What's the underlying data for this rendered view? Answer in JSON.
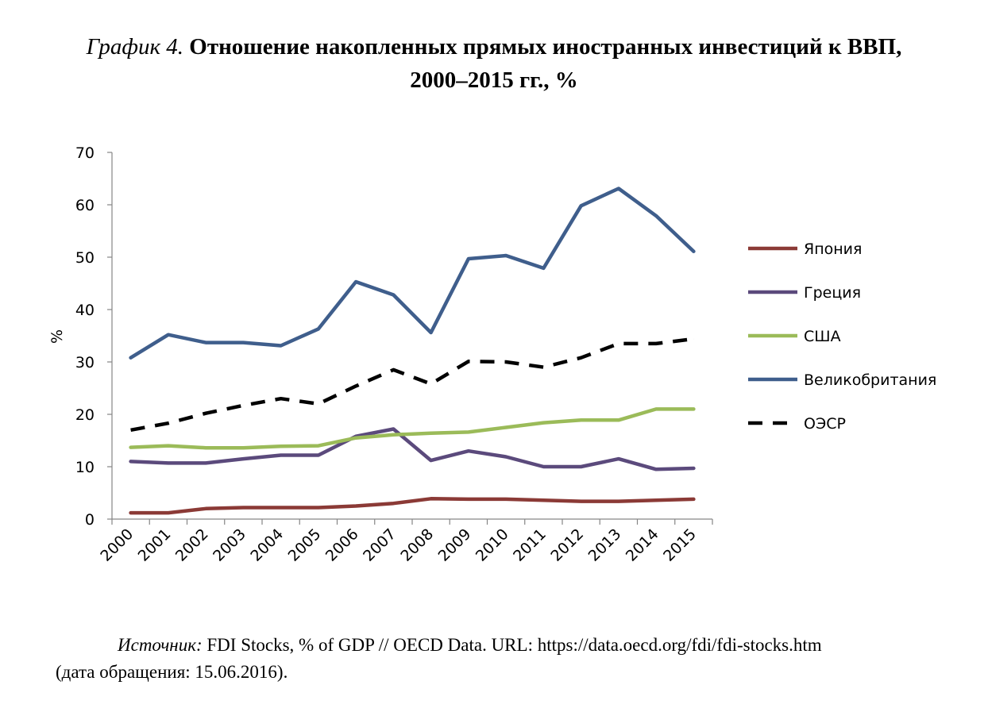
{
  "figure": {
    "title_lead": "График 4.",
    "title_main": "Отношение накопленных прямых иностранных инвестиций к ВВП,",
    "title_line2": "2000–2015 гг., %",
    "source_lead": "Источник:",
    "source_text": "FDI Stocks, % of GDP // OECD Data. URL: https://data.oecd.org/fdi/fdi-stocks.htm",
    "source_line2": "(дата обращения: 15.06.2016)."
  },
  "chart_data": {
    "type": "line",
    "title": "Отношение накопленных прямых иностранных инвестиций к ВВП, 2000–2015 гг., %",
    "xlabel": "",
    "ylabel": "%",
    "ylim": [
      0,
      70
    ],
    "yticks": [
      0,
      10,
      20,
      30,
      40,
      50,
      60,
      70
    ],
    "ytick_labels": [
      "0",
      "10",
      "20",
      "30",
      "40",
      "50",
      "60",
      "70"
    ],
    "grid": false,
    "legend_position": "right",
    "categories": [
      "2000",
      "2001",
      "2002",
      "2003",
      "2004",
      "2005",
      "2006",
      "2007",
      "2008",
      "2009",
      "2010",
      "2011",
      "2012",
      "2013",
      "2014",
      "2015"
    ],
    "series": [
      {
        "name": "Япония",
        "color": "#8b3a36",
        "dashed": false,
        "values": [
          1.2,
          1.2,
          2.0,
          2.2,
          2.2,
          2.2,
          2.5,
          3.0,
          3.9,
          3.8,
          3.8,
          3.6,
          3.4,
          3.4,
          3.6,
          3.8
        ]
      },
      {
        "name": "Греция",
        "color": "#5b4a7c",
        "dashed": false,
        "values": [
          11.0,
          10.7,
          10.7,
          11.5,
          12.2,
          12.2,
          15.8,
          17.2,
          11.2,
          13.0,
          11.9,
          10.0,
          10.0,
          11.5,
          9.5,
          9.7
        ]
      },
      {
        "name": "США",
        "color": "#9bbb59",
        "dashed": false,
        "values": [
          13.7,
          14.0,
          13.6,
          13.6,
          13.9,
          14.0,
          15.5,
          16.1,
          16.4,
          16.6,
          17.5,
          18.4,
          18.9,
          18.9,
          21.0,
          21.0
        ]
      },
      {
        "name": "Великобритания",
        "color": "#3f5e8c",
        "dashed": false,
        "values": [
          30.8,
          35.2,
          33.7,
          33.7,
          33.1,
          36.3,
          45.3,
          42.8,
          35.6,
          49.7,
          50.3,
          47.9,
          59.8,
          63.1,
          57.9,
          51.1
        ]
      },
      {
        "name": "ОЭСР",
        "color": "#000000",
        "dashed": true,
        "values": [
          17.0,
          18.3,
          20.2,
          21.7,
          23.0,
          22.0,
          25.4,
          28.5,
          25.8,
          30.1,
          30.0,
          29.0,
          30.8,
          33.5,
          33.5,
          34.4
        ]
      }
    ]
  }
}
